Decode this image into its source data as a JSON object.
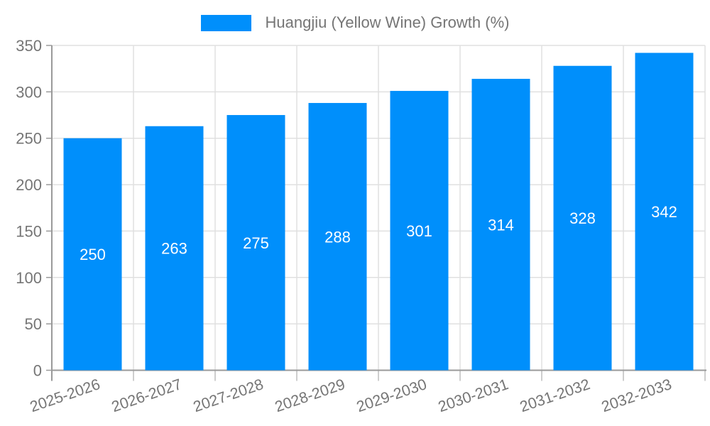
{
  "chart_data": {
    "type": "bar",
    "title": "",
    "legend": {
      "label": "Huangjiu (Yellow Wine) Growth (%)",
      "position": "top"
    },
    "categories": [
      "2025-2026",
      "2026-2027",
      "2027-2028",
      "2028-2029",
      "2029-2030",
      "2030-2031",
      "2031-2032",
      "2032-2033"
    ],
    "series": [
      {
        "name": "Huangjiu (Yellow Wine) Growth (%)",
        "values": [
          250,
          263,
          275,
          288,
          301,
          314,
          328,
          342
        ]
      }
    ],
    "value_labels": [
      "250",
      "263",
      "275",
      "288",
      "301",
      "314",
      "328",
      "342"
    ],
    "xlabel": "",
    "ylabel": "",
    "ylim": [
      0,
      350
    ],
    "yticks": [
      0,
      50,
      100,
      150,
      200,
      250,
      300,
      350
    ],
    "grid": true,
    "colors": {
      "bar": "#008FFB",
      "value_label": "#ffffff",
      "axis_text": "#757575",
      "grid_line": "#e0e0e0",
      "axis_line": "#9a9a9a",
      "tick_line": "#bdbdbd"
    }
  }
}
